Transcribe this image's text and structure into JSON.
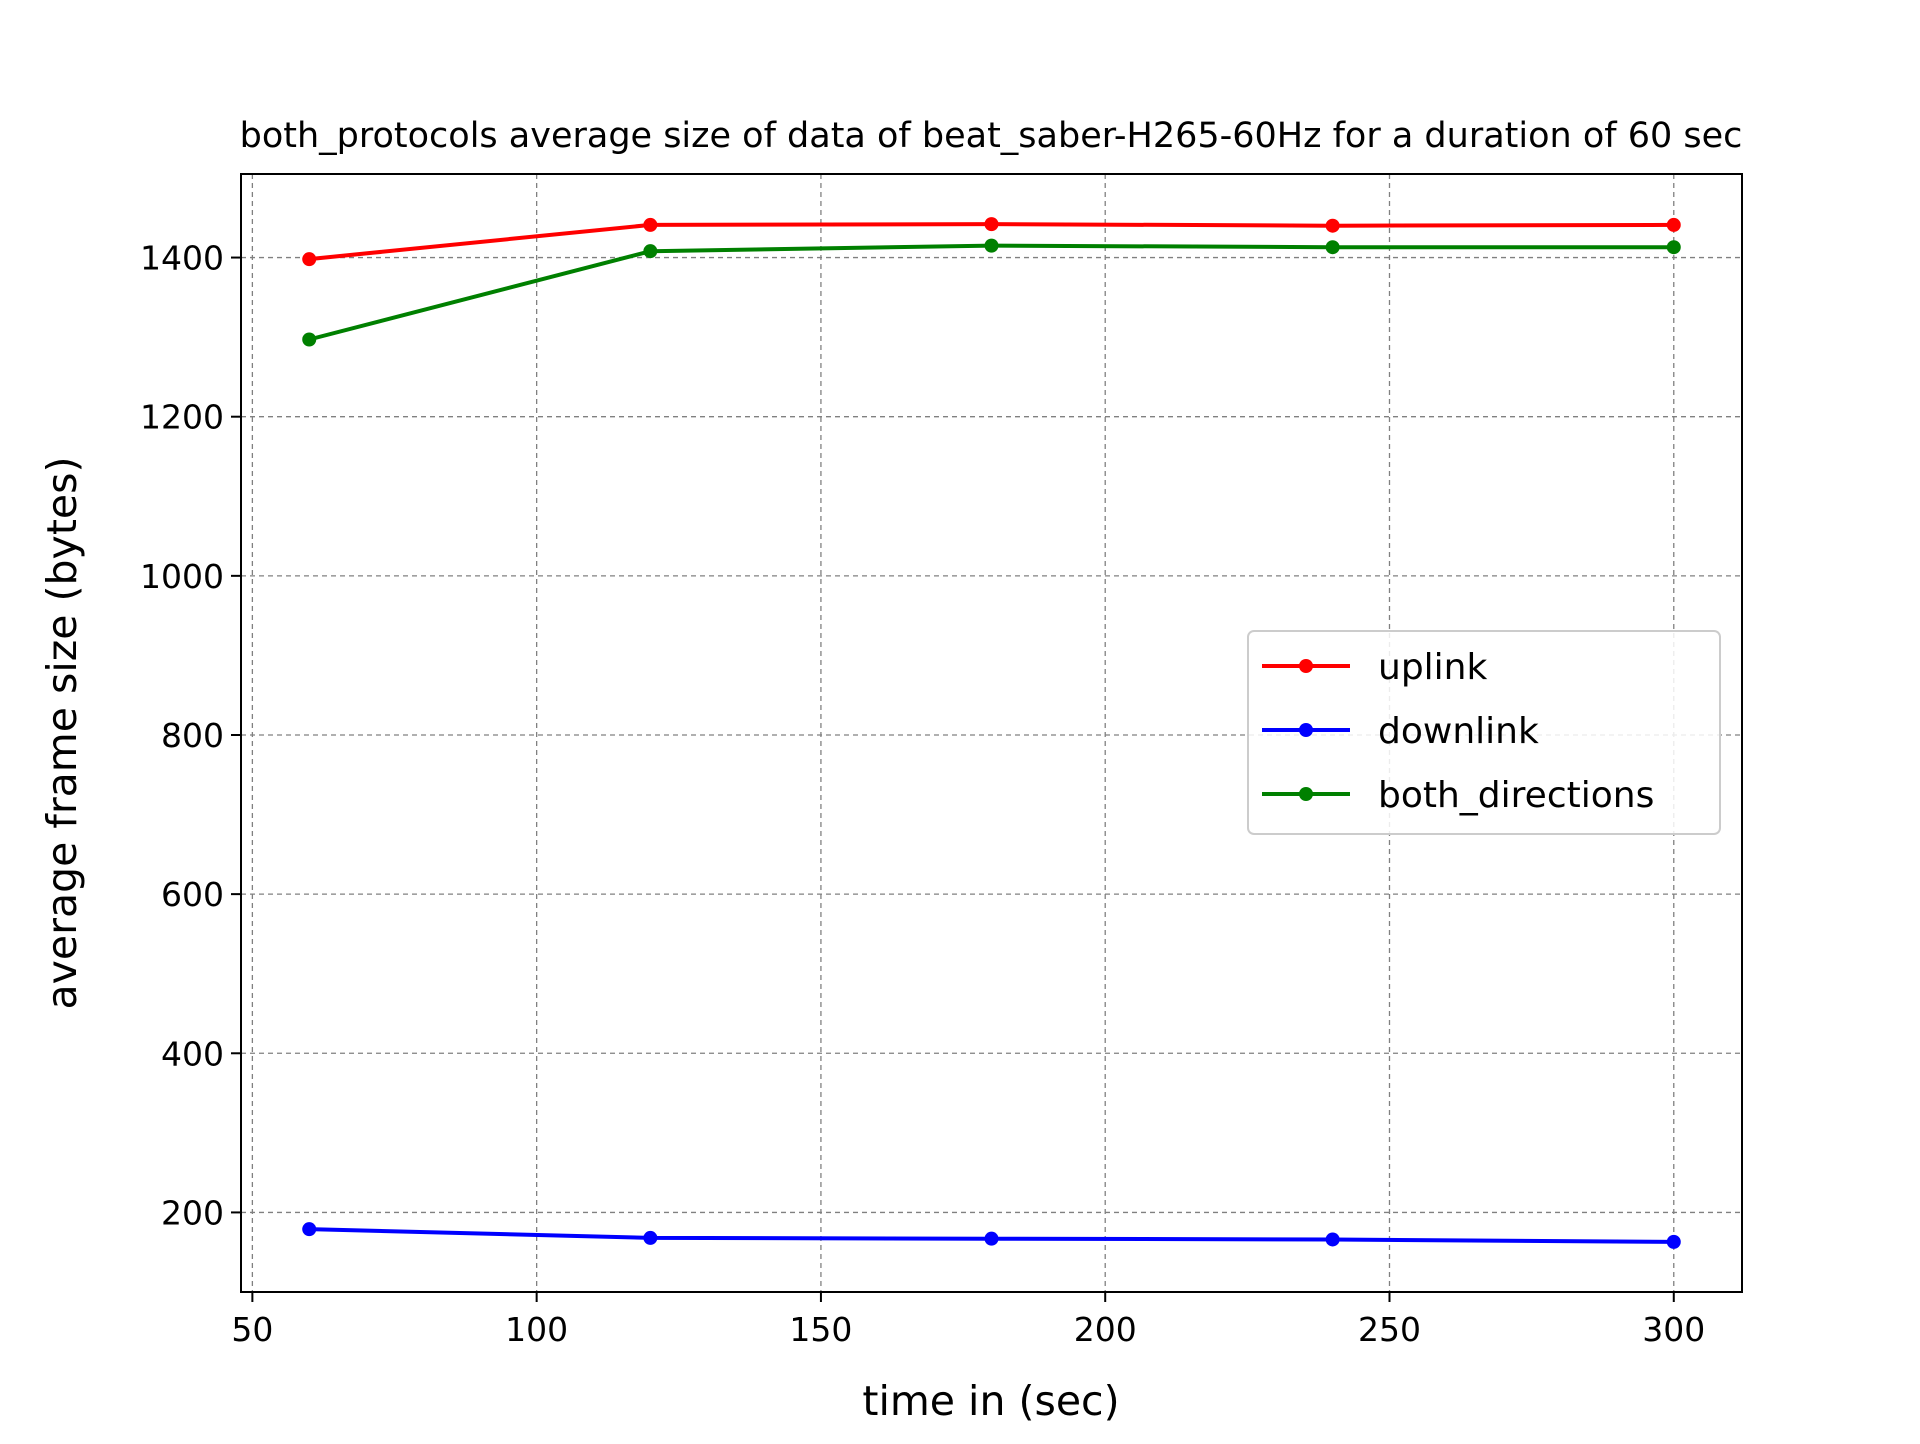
{
  "chart_data": {
    "type": "line",
    "title": "both_protocols average size of data of beat_saber-H265-60Hz for a duration of 60 sec",
    "xlabel": "time in (sec)",
    "ylabel": "average frame size (bytes)",
    "x": [
      60,
      120,
      180,
      240,
      300
    ],
    "xlim": [
      48,
      312
    ],
    "ylim": [
      100,
      1505
    ],
    "xticks": [
      50,
      100,
      150,
      200,
      250,
      300
    ],
    "yticks": [
      200,
      400,
      600,
      800,
      1000,
      1200,
      1400
    ],
    "grid": true,
    "legend_position": "center-right",
    "series": [
      {
        "name": "uplink",
        "color": "#ff0000",
        "values": [
          1398,
          1441,
          1442,
          1440,
          1441
        ]
      },
      {
        "name": "downlink",
        "color": "#0000ff",
        "values": [
          179,
          168,
          167,
          166,
          163
        ]
      },
      {
        "name": "both_directions",
        "color": "#008000",
        "values": [
          1297,
          1408,
          1415,
          1413,
          1413
        ]
      }
    ]
  }
}
